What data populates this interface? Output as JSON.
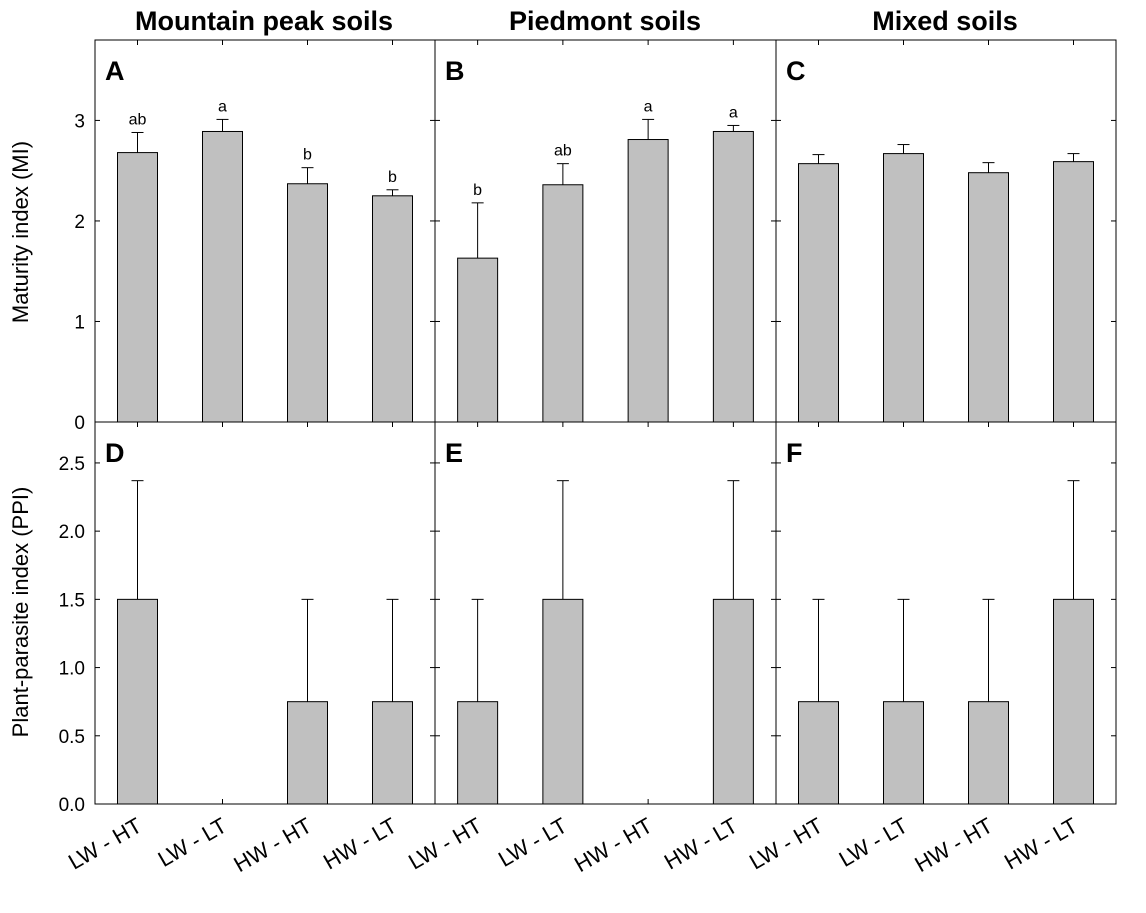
{
  "colors": {
    "bar_fill": "#c0c0c0",
    "stroke": "#000000",
    "background": "#ffffff"
  },
  "column_titles": [
    "Mountain peak soils",
    "Piedmont soils",
    "Mixed soils"
  ],
  "chart_data": [
    {
      "panel": "A",
      "type": "bar",
      "title": "Mountain peak soils",
      "ylabel": "Maturity index (MI)",
      "ylim": [
        0,
        3.8
      ],
      "yticks": [
        "0",
        "1",
        "2",
        "3"
      ],
      "ytick_values": [
        0,
        1,
        2,
        3
      ],
      "categories": [
        "LW - HT",
        "LW - LT",
        "HW - HT",
        "HW - LT"
      ],
      "values": [
        2.68,
        2.89,
        2.37,
        2.25
      ],
      "errors": [
        0.2,
        0.12,
        0.16,
        0.06
      ],
      "letters": [
        "ab",
        "a",
        "b",
        "b"
      ]
    },
    {
      "panel": "B",
      "type": "bar",
      "title": "Piedmont soils",
      "ylabel": "",
      "ylim": [
        0,
        3.8
      ],
      "yticks": [],
      "ytick_values": [
        0,
        1,
        2,
        3
      ],
      "categories": [
        "LW - HT",
        "LW - LT",
        "HW - HT",
        "HW - LT"
      ],
      "values": [
        1.63,
        2.36,
        2.81,
        2.89
      ],
      "errors": [
        0.55,
        0.21,
        0.2,
        0.06
      ],
      "letters": [
        "b",
        "ab",
        "a",
        "a"
      ]
    },
    {
      "panel": "C",
      "type": "bar",
      "title": "Mixed soils",
      "ylabel": "",
      "ylim": [
        0,
        3.8
      ],
      "yticks": [],
      "ytick_values": [
        0,
        1,
        2,
        3
      ],
      "categories": [
        "LW - HT",
        "LW - LT",
        "HW - HT",
        "HW - LT"
      ],
      "values": [
        2.57,
        2.67,
        2.48,
        2.59
      ],
      "errors": [
        0.09,
        0.09,
        0.1,
        0.08
      ],
      "letters": [
        "",
        "",
        "",
        ""
      ]
    },
    {
      "panel": "D",
      "type": "bar",
      "ylabel": "Plant-parasite index (PPI)",
      "ylim": [
        0,
        2.8
      ],
      "yticks": [
        "0.0",
        "0.5",
        "1.0",
        "1.5",
        "2.0",
        "2.5"
      ],
      "ytick_values": [
        0,
        0.5,
        1,
        1.5,
        2,
        2.5
      ],
      "categories": [
        "LW - HT",
        "LW - LT",
        "HW - HT",
        "HW - LT"
      ],
      "values": [
        1.5,
        0,
        0.75,
        0.75
      ],
      "errors": [
        0.87,
        0,
        0.75,
        0.75
      ]
    },
    {
      "panel": "E",
      "type": "bar",
      "ylabel": "",
      "ylim": [
        0,
        2.8
      ],
      "yticks": [],
      "ytick_values": [
        0,
        0.5,
        1,
        1.5,
        2,
        2.5
      ],
      "categories": [
        "LW - HT",
        "LW - LT",
        "HW - HT",
        "HW - LT"
      ],
      "values": [
        0.75,
        1.5,
        0,
        1.5
      ],
      "errors": [
        0.75,
        0.87,
        0,
        0.87
      ]
    },
    {
      "panel": "F",
      "type": "bar",
      "ylabel": "",
      "ylim": [
        0,
        2.8
      ],
      "yticks": [],
      "ytick_values": [
        0,
        0.5,
        1,
        1.5,
        2,
        2.5
      ],
      "categories": [
        "LW - HT",
        "LW - LT",
        "HW - HT",
        "HW - LT"
      ],
      "values": [
        0.75,
        0.75,
        0.75,
        1.5
      ],
      "errors": [
        0.75,
        0.75,
        0.75,
        0.87
      ]
    }
  ]
}
